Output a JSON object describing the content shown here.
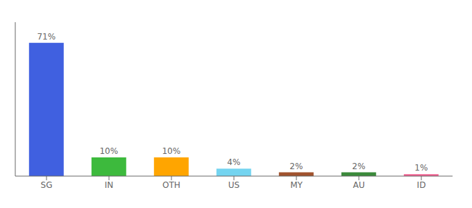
{
  "chart_data": {
    "type": "bar",
    "categories": [
      "SG",
      "IN",
      "OTH",
      "US",
      "MY",
      "AU",
      "ID"
    ],
    "values": [
      71,
      10,
      10,
      4,
      2,
      2,
      1
    ],
    "value_labels": [
      "71%",
      "10%",
      "10%",
      "4%",
      "2%",
      "2%",
      "1%"
    ],
    "colors": [
      "#4060e0",
      "#3dba3d",
      "#ffa500",
      "#74d4f0",
      "#a0522d",
      "#3a8a3a",
      "#f06090"
    ],
    "ylim": [
      0,
      82
    ],
    "data_labels": true,
    "tick_labels": "x"
  }
}
